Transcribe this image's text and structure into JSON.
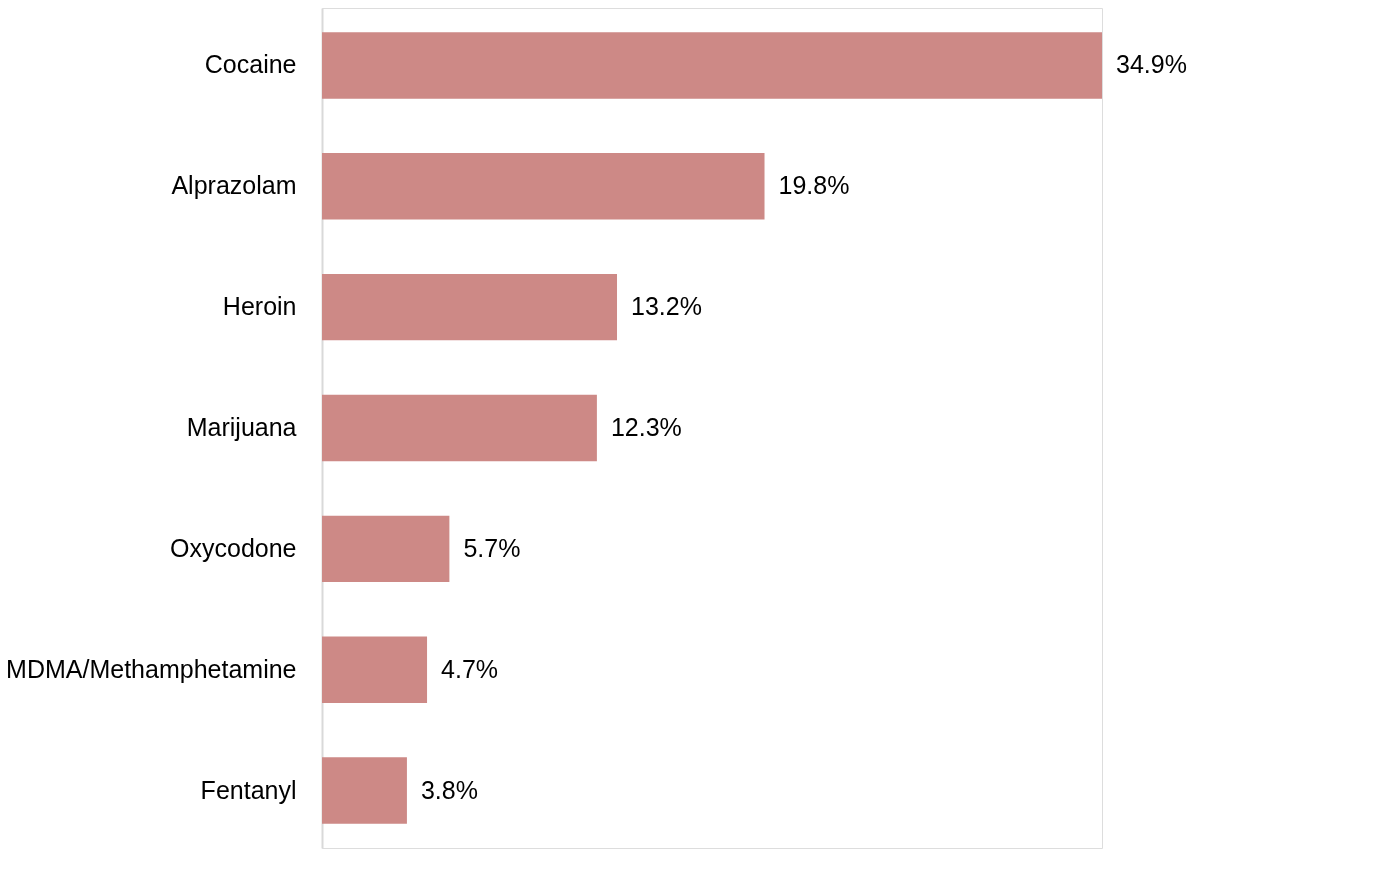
{
  "chart_data": {
    "type": "bar",
    "orientation": "horizontal",
    "categories": [
      "Cocaine",
      "Alprazolam",
      "Heroin",
      "Marijuana",
      "Oxycodone",
      "MDMA/Methamphetamine",
      "Fentanyl"
    ],
    "values": [
      34.9,
      19.8,
      13.2,
      12.3,
      5.7,
      4.7,
      3.8
    ],
    "value_labels": [
      "34.9%",
      "19.8%",
      "13.2%",
      "12.3%",
      "5.7%",
      "4.7%",
      "3.8%"
    ],
    "color": "#cd8986"
  }
}
